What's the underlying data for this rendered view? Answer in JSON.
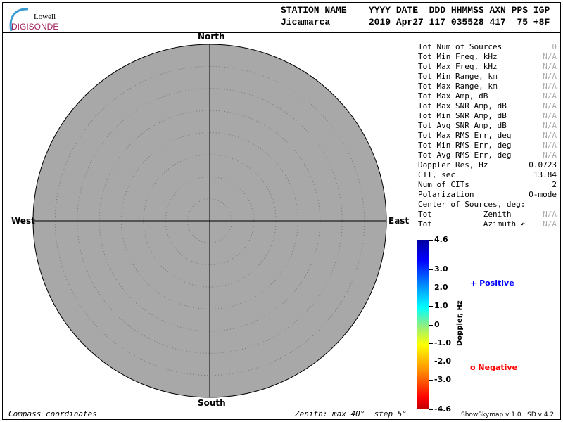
{
  "logo": {
    "top": "Lowell",
    "bottom": "DIGISONDE"
  },
  "header": {
    "labels": "STATION NAME    YYYY DATE  DDD HHMMSS AXN PPS IGP",
    "values": "Jicamarca       2019 Apr27 117 035528 417  75 +8F"
  },
  "compass": {
    "north": "North",
    "south": "South",
    "east": "East",
    "west": "West"
  },
  "stats": [
    {
      "label": "Tot Num of Sources",
      "value": "0",
      "dim": true
    },
    {
      "label": "Tot Min Freq, kHz",
      "value": "N/A",
      "dim": true
    },
    {
      "label": "Tot Max Freq, kHz",
      "value": "N/A",
      "dim": true
    },
    {
      "label": "Tot Min Range, km",
      "value": "N/A",
      "dim": true
    },
    {
      "label": "Tot Max Range, km",
      "value": "N/A",
      "dim": true
    },
    {
      "label": "Tot Max Amp, dB",
      "value": "N/A",
      "dim": true
    },
    {
      "label": "Tot Max SNR Amp, dB",
      "value": "N/A",
      "dim": true
    },
    {
      "label": "Tot Min SNR Amp, dB",
      "value": "N/A",
      "dim": true
    },
    {
      "label": "Tot Avg SNR Amp, dB",
      "value": "N/A",
      "dim": true
    },
    {
      "label": "Tot Max RMS Err, deg",
      "value": "N/A",
      "dim": true
    },
    {
      "label": "Tot Min RMS Err, deg",
      "value": "N/A",
      "dim": true
    },
    {
      "label": "Tot Avg RMS Err, deg",
      "value": "N/A",
      "dim": true
    },
    {
      "label": "Doppler Res, Hz",
      "value": "0.0723",
      "dim": false
    },
    {
      "label": "CIT, sec",
      "value": "13.84",
      "dim": false
    },
    {
      "label": "Num of CITs",
      "value": "2",
      "dim": false
    },
    {
      "label": "Polarization",
      "value": "O-mode",
      "dim": false
    },
    {
      "label": "Center of Sources, deg:",
      "value": "",
      "dim": false
    },
    {
      "label": "Tot           Zenith",
      "value": "N/A",
      "dim": true
    },
    {
      "label": "Tot           Azimuth ↶",
      "value": "N/A",
      "dim": true
    }
  ],
  "colorbar": {
    "title": "Doppler, Hz",
    "ticks": [
      "4.6",
      "3.0",
      "2.0",
      "1.0",
      "0",
      "-1.0",
      "-2.0",
      "-3.0",
      "-4.6"
    ],
    "range": [
      -4.6,
      4.6
    ]
  },
  "legend": {
    "positive": {
      "symbol": "+",
      "label": "Positive",
      "color": "#0000ff"
    },
    "negative": {
      "symbol": "o",
      "label": "Negative",
      "color": "#ff0000"
    }
  },
  "footer": {
    "left": "Compass coordinates",
    "center": "Zenith: max 40°  step 5°",
    "right": "ShowSkymap v 1.0   SD v 4.2"
  },
  "plot": {
    "zenith_max_deg": 40,
    "zenith_step_deg": 5,
    "background": "#a8a8a8"
  }
}
